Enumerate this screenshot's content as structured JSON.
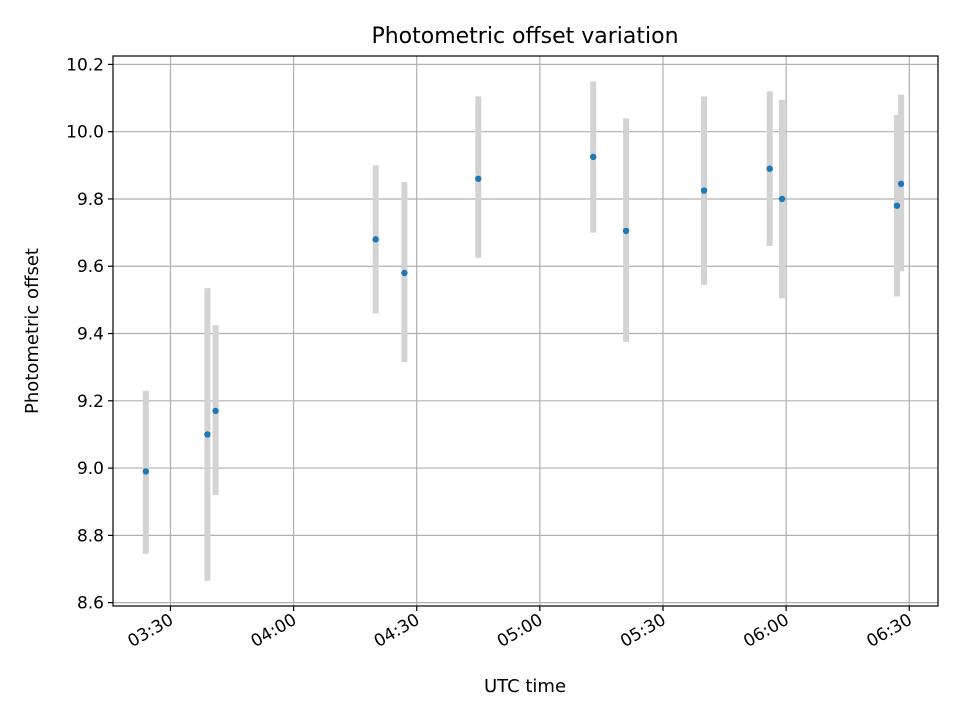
{
  "chart_data": {
    "type": "scatter",
    "title": "Photometric offset variation",
    "xlabel": "UTC time",
    "ylabel": "Photometric offset",
    "x_axis_type": "time",
    "xlim": [
      "03:16",
      "06:37"
    ],
    "ylim": [
      8.59,
      10.225
    ],
    "x_ticks": [
      "03:30",
      "04:00",
      "04:30",
      "05:00",
      "05:30",
      "06:00",
      "06:30"
    ],
    "y_ticks": [
      "8.6",
      "8.8",
      "9.0",
      "9.2",
      "9.4",
      "9.6",
      "9.8",
      "10.0",
      "10.2"
    ],
    "grid": true,
    "legend": "none",
    "marker_color": "#1f77b4",
    "errorbar_color": "#d3d3d3",
    "points": [
      {
        "x": "03:24",
        "y": 8.99,
        "yerr_low": 8.745,
        "yerr_high": 9.23
      },
      {
        "x": "03:39",
        "y": 9.1,
        "yerr_low": 8.665,
        "yerr_high": 9.535
      },
      {
        "x": "03:41",
        "y": 9.17,
        "yerr_low": 8.92,
        "yerr_high": 9.425
      },
      {
        "x": "04:20",
        "y": 9.68,
        "yerr_low": 9.46,
        "yerr_high": 9.9
      },
      {
        "x": "04:27",
        "y": 9.58,
        "yerr_low": 9.315,
        "yerr_high": 9.85
      },
      {
        "x": "04:45",
        "y": 9.86,
        "yerr_low": 9.625,
        "yerr_high": 10.105
      },
      {
        "x": "05:13",
        "y": 9.925,
        "yerr_low": 9.7,
        "yerr_high": 10.15
      },
      {
        "x": "05:21",
        "y": 9.705,
        "yerr_low": 9.375,
        "yerr_high": 10.04
      },
      {
        "x": "05:40",
        "y": 9.825,
        "yerr_low": 9.545,
        "yerr_high": 10.105
      },
      {
        "x": "05:56",
        "y": 9.89,
        "yerr_low": 9.66,
        "yerr_high": 10.12
      },
      {
        "x": "05:59",
        "y": 9.8,
        "yerr_low": 9.505,
        "yerr_high": 10.095
      },
      {
        "x": "06:27",
        "y": 9.78,
        "yerr_low": 9.51,
        "yerr_high": 10.05
      },
      {
        "x": "06:28",
        "y": 9.845,
        "yerr_low": 9.585,
        "yerr_high": 10.11
      }
    ]
  }
}
